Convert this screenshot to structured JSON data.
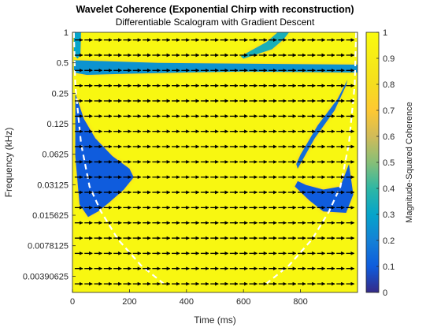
{
  "chart_data": {
    "type": "heatmap",
    "title": "Wavelet Coherence (Exponential Chirp with reconstruction)",
    "subtitle": "Differentiable Scalogram with Gradient Descent",
    "xlabel": "Time (ms)",
    "ylabel": "Frequency (kHz)",
    "xlim": [
      0,
      1000
    ],
    "x_ticks": [
      0,
      200,
      400,
      600,
      800
    ],
    "y_scale": "log2",
    "ylim": [
      0.0027,
      1.0
    ],
    "y_ticks": [
      1,
      0.5,
      0.25,
      0.125,
      0.0625,
      0.03125,
      0.015625,
      0.0078125,
      0.00390625
    ],
    "y_tick_labels": [
      "1",
      "0.5",
      "0.25",
      "0.125",
      "0.0625",
      "0.03125",
      "0.015625",
      "0.0078125",
      "0.00390625"
    ],
    "colorbar": {
      "label": "Magnitude-Squared Coherence",
      "range": [
        0,
        1
      ],
      "ticks": [
        0,
        0.1,
        0.2,
        0.3,
        0.4,
        0.5,
        0.6,
        0.7,
        0.8,
        0.9,
        1
      ],
      "tick_labels": [
        "0",
        "0.1",
        "0.2",
        "0.3",
        "0.4",
        "0.5",
        "0.6",
        "0.7",
        "0.8",
        "0.9",
        "1"
      ],
      "colormap": "parula"
    },
    "background_coherence": 0.97,
    "low_coherence_regions": [
      {
        "name": "left-lobe",
        "coherence": 0.1,
        "polygon": [
          [
            10,
            0.25
          ],
          [
            40,
            0.14
          ],
          [
            80,
            0.09
          ],
          [
            140,
            0.06
          ],
          [
            200,
            0.045
          ],
          [
            215,
            0.037
          ],
          [
            180,
            0.028
          ],
          [
            130,
            0.021
          ],
          [
            90,
            0.017
          ],
          [
            55,
            0.015
          ],
          [
            25,
            0.02
          ],
          [
            10,
            0.06
          ]
        ]
      },
      {
        "name": "right-lobe",
        "coherence": 0.1,
        "polygon": [
          [
            780,
            0.03
          ],
          [
            830,
            0.022
          ],
          [
            880,
            0.017
          ],
          [
            960,
            0.0165
          ],
          [
            985,
            0.025
          ],
          [
            970,
            0.05
          ],
          [
            940,
            0.03
          ],
          [
            880,
            0.028
          ],
          [
            820,
            0.031
          ],
          [
            790,
            0.034
          ]
        ]
      },
      {
        "name": "right-streak",
        "coherence": 0.15,
        "polygon": [
          [
            790,
            0.045
          ],
          [
            850,
            0.09
          ],
          [
            920,
            0.17
          ],
          [
            960,
            0.3
          ],
          [
            965,
            0.34
          ],
          [
            930,
            0.22
          ],
          [
            860,
            0.12
          ],
          [
            800,
            0.062
          ],
          [
            785,
            0.05
          ]
        ]
      },
      {
        "name": "top-band",
        "coherence": 0.25,
        "polygon": [
          [
            5,
            0.53
          ],
          [
            300,
            0.5
          ],
          [
            600,
            0.49
          ],
          [
            1000,
            0.48
          ],
          [
            1000,
            0.4
          ],
          [
            600,
            0.41
          ],
          [
            380,
            0.4
          ],
          [
            200,
            0.39
          ],
          [
            50,
            0.38
          ],
          [
            5,
            0.4
          ]
        ]
      },
      {
        "name": "top-right-arc",
        "coherence": 0.35,
        "polygon": [
          [
            600,
            0.55
          ],
          [
            700,
            0.68
          ],
          [
            740,
            0.85
          ],
          [
            760,
            1.0
          ],
          [
            720,
            1.0
          ],
          [
            680,
            0.8
          ],
          [
            590,
            0.58
          ]
        ]
      },
      {
        "name": "top-left-spikes",
        "coherence": 0.3,
        "polygon": [
          [
            5,
            1.0
          ],
          [
            30,
            1.0
          ],
          [
            28,
            0.6
          ],
          [
            18,
            0.55
          ],
          [
            5,
            0.6
          ]
        ]
      }
    ],
    "cone_of_influence": {
      "style": "white-dashed",
      "left": [
        [
          5,
          1.0
        ],
        [
          10,
          0.3
        ],
        [
          30,
          0.08
        ],
        [
          60,
          0.03
        ],
        [
          100,
          0.017
        ],
        [
          160,
          0.009
        ],
        [
          240,
          0.005
        ],
        [
          320,
          0.0033
        ]
      ],
      "right": [
        [
          995,
          1.0
        ],
        [
          990,
          0.3
        ],
        [
          970,
          0.08
        ],
        [
          940,
          0.03
        ],
        [
          900,
          0.017
        ],
        [
          840,
          0.009
        ],
        [
          760,
          0.005
        ],
        [
          680,
          0.0033
        ]
      ]
    },
    "phase_arrows": {
      "direction": "right",
      "x_step": 34,
      "y_rows_log2": [
        -0.25,
        -0.75,
        -1.25,
        -1.75,
        -2.25,
        -2.75,
        -3.25,
        -3.75,
        -4.25,
        -4.75,
        -5.25,
        -5.75,
        -6.25,
        -6.75,
        -7.25,
        -7.75,
        -8.25
      ]
    }
  }
}
